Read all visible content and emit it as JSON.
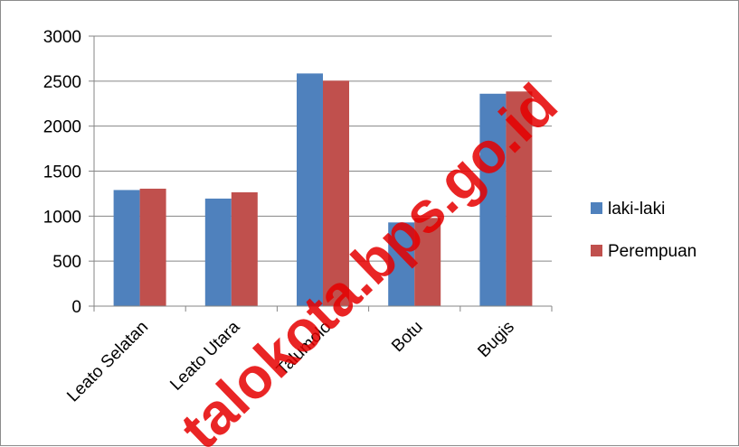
{
  "chart_data": {
    "type": "bar",
    "title": "",
    "xlabel": "",
    "ylabel": "",
    "categories": [
      "Leato Selatan",
      "Leato Utara",
      "Talumolo",
      "Botu",
      "Bugis"
    ],
    "series": [
      {
        "name": "laki-laki",
        "color": "#4f81bd",
        "values": [
          1290,
          1195,
          2585,
          930,
          2360
        ]
      },
      {
        "name": "Perempuan",
        "color": "#c0504d",
        "values": [
          1305,
          1265,
          2505,
          980,
          2385
        ]
      }
    ],
    "ylim": [
      0,
      3000
    ],
    "yticks": [
      0,
      500,
      1000,
      1500,
      2000,
      2500,
      3000
    ],
    "grid": true,
    "legend_position": "right"
  },
  "watermark": "talokota.bps.go.id"
}
